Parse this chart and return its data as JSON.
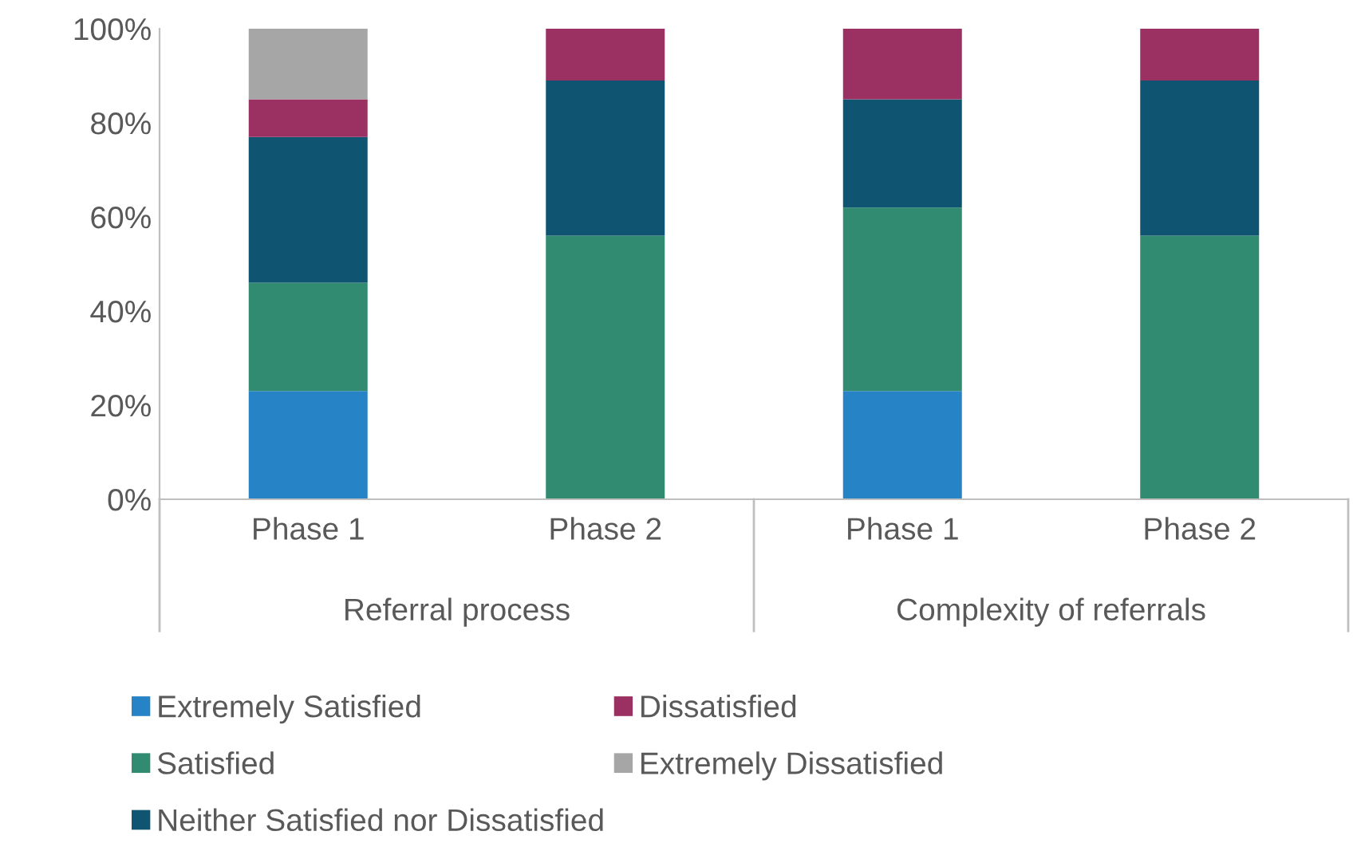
{
  "chart_data": {
    "type": "bar",
    "stacked": true,
    "categories": [
      "Phase 1",
      "Phase 2",
      "Phase 1",
      "Phase 2"
    ],
    "series": [
      {
        "name": "Extremely Satisfied",
        "color": "#2683c6",
        "values": [
          23,
          0,
          23,
          0
        ]
      },
      {
        "name": "Satisfied",
        "color": "#318b71",
        "values": [
          23,
          56,
          39,
          56
        ]
      },
      {
        "name": "Neither Satisfied nor Dissatisfied",
        "color": "#0f5470",
        "values": [
          31,
          33,
          23,
          33
        ]
      },
      {
        "name": "Dissatisfied",
        "color": "#9b3163",
        "values": [
          8,
          11,
          15,
          11
        ]
      },
      {
        "name": "Extremely Dissatisfied",
        "color": "#a6a6a6",
        "values": [
          15,
          0,
          0,
          0
        ]
      }
    ],
    "annotations": [
      "Referral process",
      "Complexity of referrals"
    ],
    "ylim": [
      0,
      100
    ],
    "yticks": [
      {
        "value": 0,
        "label": "0%"
      },
      {
        "value": 20,
        "label": "20%"
      },
      {
        "value": 40,
        "label": "40%"
      },
      {
        "value": 60,
        "label": "60%"
      },
      {
        "value": 80,
        "label": "80%"
      },
      {
        "value": 100,
        "label": "100%"
      }
    ],
    "legend": "bottom",
    "grid": false
  }
}
